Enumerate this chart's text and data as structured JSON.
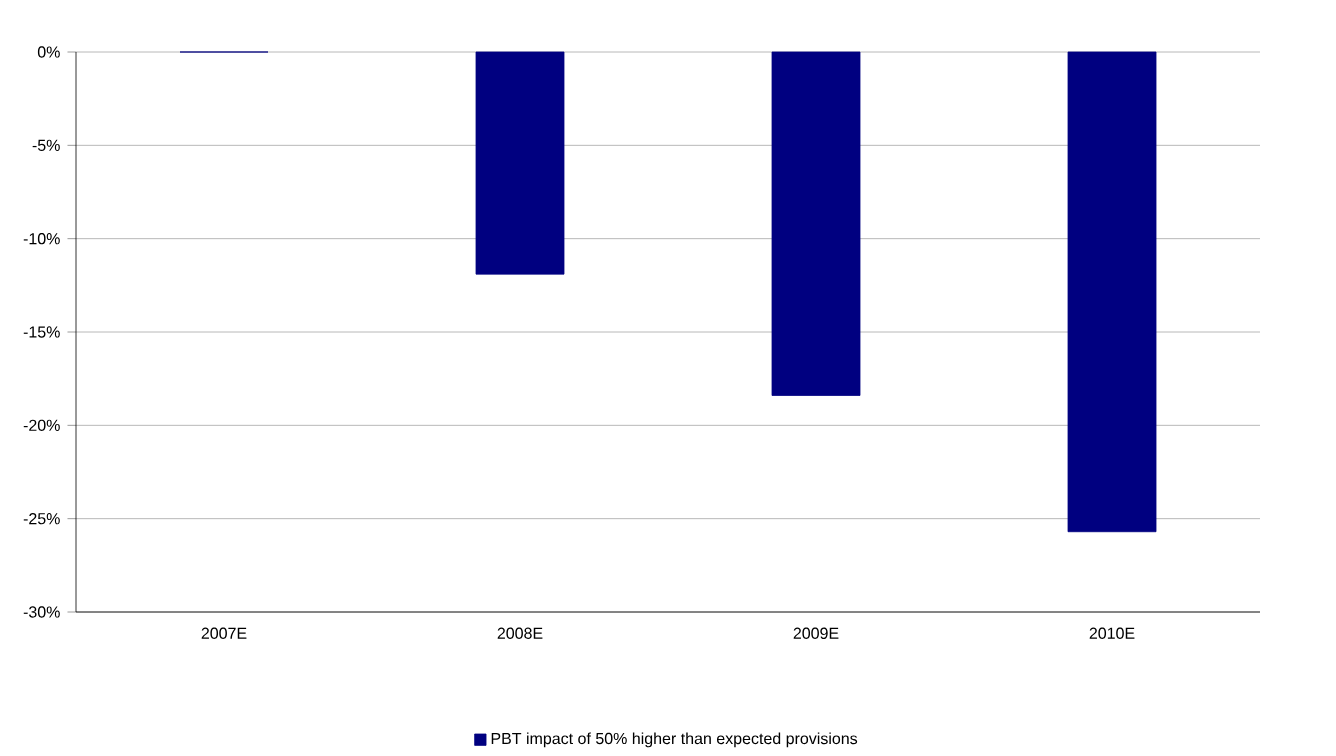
{
  "chart_data": {
    "type": "bar",
    "categories": [
      "2007E",
      "2008E",
      "2009E",
      "2010E"
    ],
    "series": [
      {
        "name": "PBT impact of 50% higher than expected provisions",
        "color": "#000080",
        "values": [
          0,
          -11.9,
          -18.4,
          -25.7
        ]
      }
    ],
    "ylim": [
      -30,
      0
    ],
    "yticks": [
      {
        "value": 0,
        "label": "0%"
      },
      {
        "value": -5,
        "label": "-5%"
      },
      {
        "value": -10,
        "label": "-10%"
      },
      {
        "value": -15,
        "label": "-15%"
      },
      {
        "value": -20,
        "label": "-20%"
      },
      {
        "value": -25,
        "label": "-25%"
      },
      {
        "value": -30,
        "label": "-30%"
      }
    ],
    "grid": "y",
    "legend": "bottom"
  }
}
